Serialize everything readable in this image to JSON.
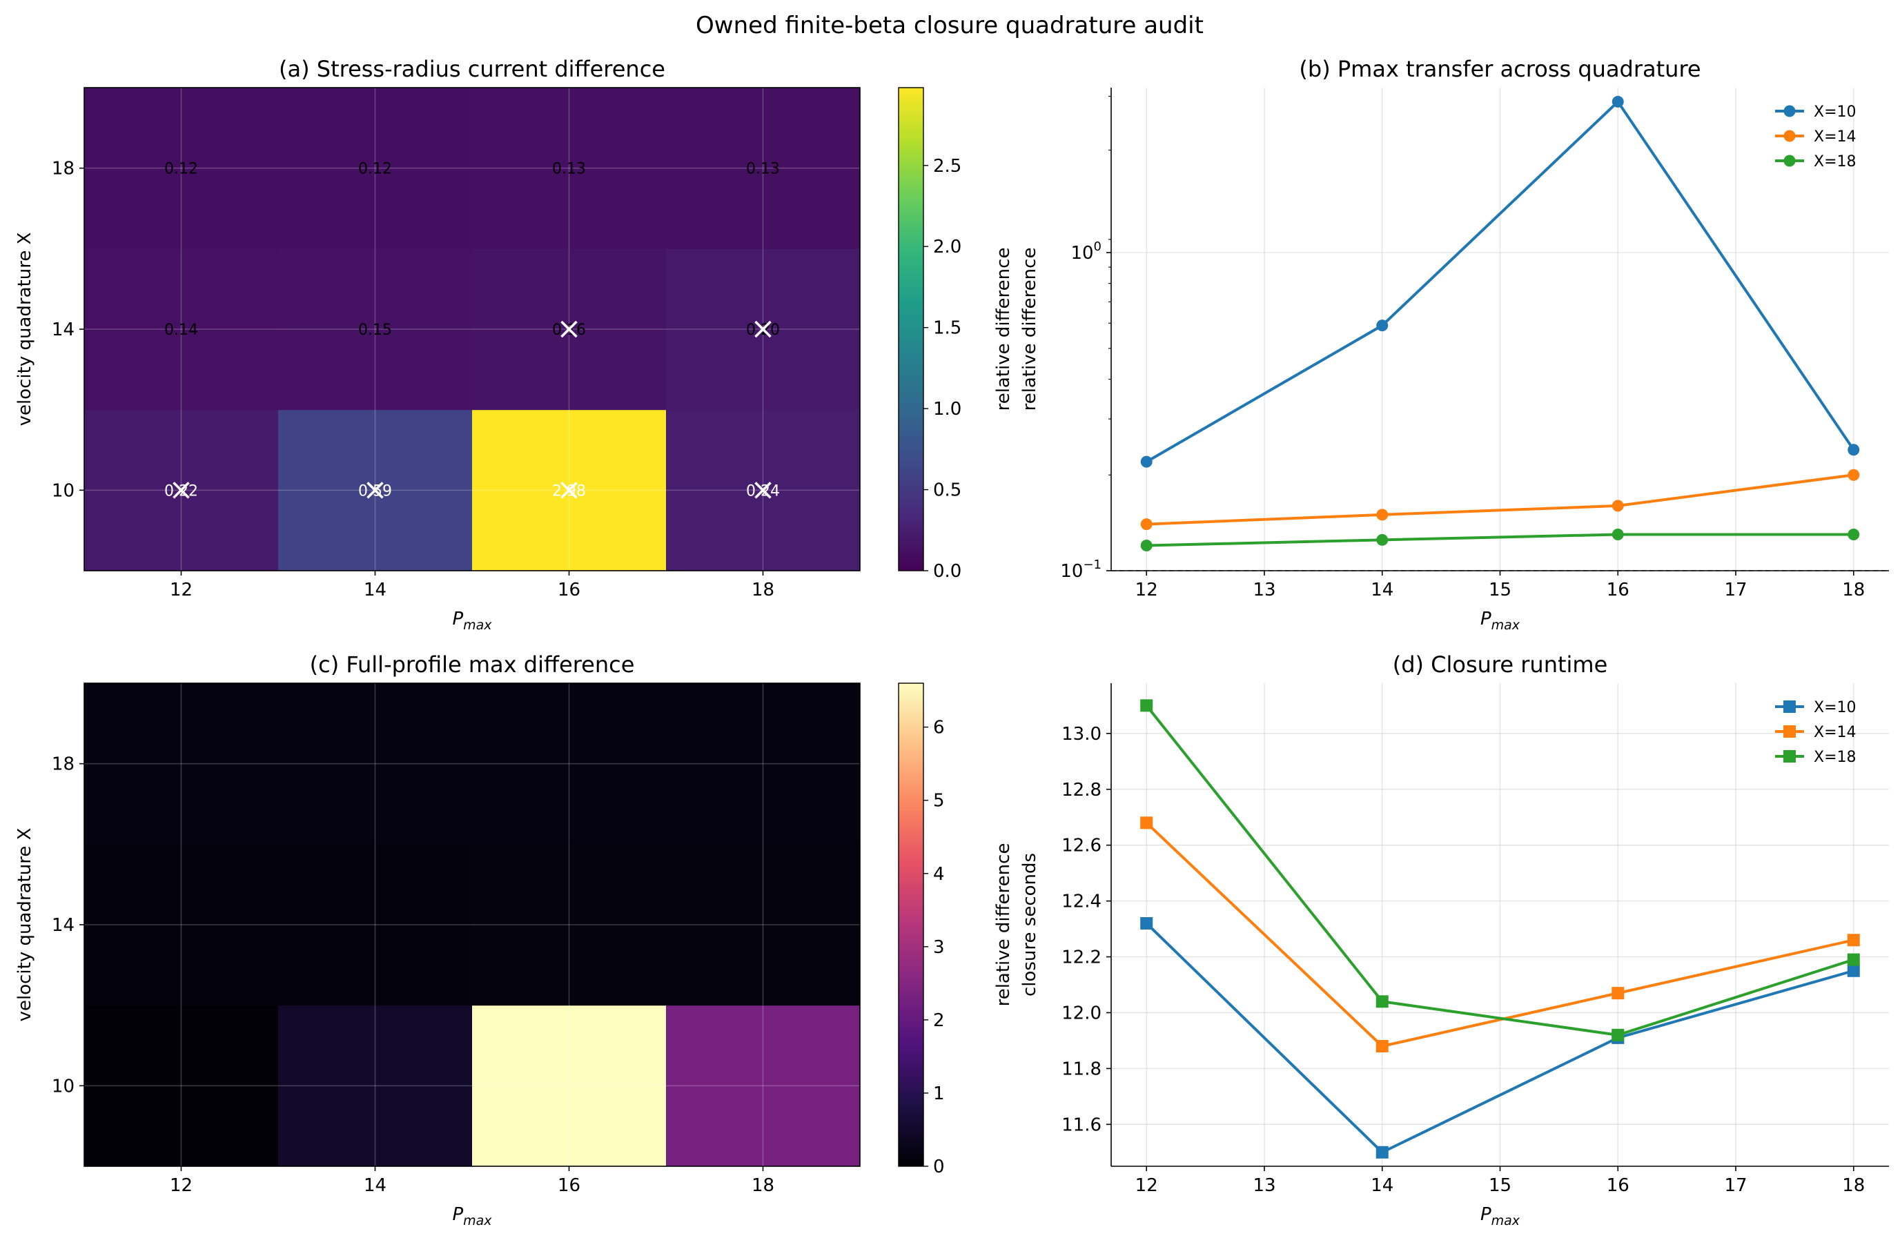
{
  "figure": {
    "title": "Owned finite-beta closure quadrature audit"
  },
  "chart_data": [
    {
      "id": "a",
      "type": "heatmap",
      "title": "(a) Stress-radius current difference",
      "xlabel": "P_max",
      "ylabel": "velocity quadrature X",
      "x_categories": [
        "12",
        "14",
        "16",
        "18"
      ],
      "y_categories": [
        "10",
        "14",
        "18"
      ],
      "values": [
        [
          0.22,
          0.59,
          2.98,
          0.24
        ],
        [
          0.14,
          0.15,
          0.16,
          0.2
        ],
        [
          0.12,
          0.12,
          0.13,
          0.13
        ]
      ],
      "cell_labels": [
        [
          "0.22",
          "0.59",
          "2.98",
          "0.24"
        ],
        [
          "0.14",
          "0.15",
          "0.16",
          "0.20"
        ],
        [
          "0.12",
          "0.12",
          "0.13",
          "0.13"
        ]
      ],
      "markers": [
        [
          0,
          0
        ],
        [
          0,
          1
        ],
        [
          0,
          2
        ],
        [
          0,
          3
        ],
        [
          1,
          2
        ],
        [
          1,
          3
        ]
      ],
      "colormap": "viridis",
      "clim": [
        0,
        2.98
      ],
      "colorbar": {
        "label": "relative difference",
        "ticks": [
          "0.0",
          "0.5",
          "1.0",
          "1.5",
          "2.0",
          "2.5"
        ]
      }
    },
    {
      "id": "b",
      "type": "line",
      "title": "(b) Pmax transfer across quadrature",
      "xlabel": "P_max",
      "ylabel": "relative difference",
      "yscale": "log",
      "xlim": [
        11.7,
        18.3
      ],
      "ylim": [
        0.1,
        3.3
      ],
      "x_ticks": [
        "12",
        "13",
        "14",
        "15",
        "16",
        "17",
        "18"
      ],
      "y_ticks": [
        {
          "value": 1.0,
          "base": "10",
          "exp": "0"
        },
        {
          "value": 0.1,
          "base": "10",
          "exp": "−1"
        }
      ],
      "reference_line": 0.1,
      "marker": "circle",
      "x": [
        12,
        14,
        16,
        18
      ],
      "series": [
        {
          "name": "X=10",
          "color": "#1f77b4",
          "values": [
            0.22,
            0.59,
            2.98,
            0.24
          ]
        },
        {
          "name": "X=14",
          "color": "#ff7f0e",
          "values": [
            0.14,
            0.15,
            0.16,
            0.2
          ]
        },
        {
          "name": "X=18",
          "color": "#2ca02c",
          "values": [
            0.12,
            0.125,
            0.13,
            0.13
          ]
        }
      ],
      "legend": "top-right",
      "grid": true
    },
    {
      "id": "c",
      "type": "heatmap",
      "title": "(c) Full-profile max difference",
      "xlabel": "P_max",
      "ylabel": "velocity quadrature X",
      "x_categories": [
        "12",
        "14",
        "16",
        "18"
      ],
      "y_categories": [
        "10",
        "14",
        "18"
      ],
      "values": [
        [
          0.05,
          0.5,
          6.6,
          2.3
        ],
        [
          0.12,
          0.12,
          0.13,
          0.13
        ],
        [
          0.15,
          0.15,
          0.16,
          0.16
        ]
      ],
      "colormap": "magma",
      "clim": [
        0,
        6.6
      ],
      "colorbar": {
        "label": "relative difference",
        "ticks": [
          "0",
          "1",
          "2",
          "3",
          "4",
          "5",
          "6"
        ]
      }
    },
    {
      "id": "d",
      "type": "line",
      "title": "(d) Closure runtime",
      "xlabel": "P_max",
      "ylabel": "closure seconds",
      "xlim": [
        11.7,
        18.3
      ],
      "ylim": [
        11.45,
        13.18
      ],
      "x_ticks": [
        "12",
        "13",
        "14",
        "15",
        "16",
        "17",
        "18"
      ],
      "y_ticks": [
        "11.6",
        "11.8",
        "12.0",
        "12.2",
        "12.4",
        "12.6",
        "12.8",
        "13.0"
      ],
      "marker": "square",
      "x": [
        12,
        14,
        16,
        18
      ],
      "series": [
        {
          "name": "X=10",
          "color": "#1f77b4",
          "values": [
            12.32,
            11.5,
            11.91,
            12.15
          ]
        },
        {
          "name": "X=14",
          "color": "#ff7f0e",
          "values": [
            12.68,
            11.88,
            12.07,
            12.26
          ]
        },
        {
          "name": "X=18",
          "color": "#2ca02c",
          "values": [
            13.1,
            12.04,
            11.92,
            12.19
          ]
        }
      ],
      "legend": "top-right",
      "grid": true
    }
  ]
}
